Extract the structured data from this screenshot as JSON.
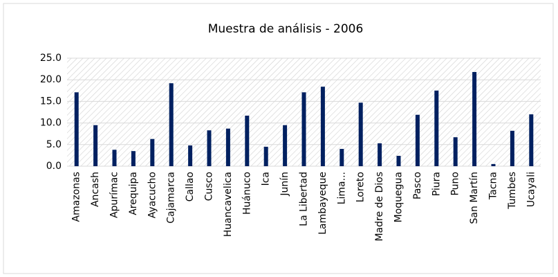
{
  "chart_data": {
    "type": "bar",
    "title": "Muestra de análisis - 2006",
    "categories": [
      "Amazonas",
      "Ancash",
      "Apurímac",
      "Arequipa",
      "Ayacucho",
      "Cajamarca",
      "Callao",
      "Cusco",
      "Huancavelica",
      "Huánuco",
      "Ica",
      "Junín",
      "La Libertad",
      "Lambayeque",
      "Lima...",
      "Loreto",
      "Madre de Dios",
      "Moquegua",
      "Pasco",
      "Piura",
      "Puno",
      "San Martín",
      "Tacna",
      "Tumbes",
      "Ucayali"
    ],
    "values": [
      17.1,
      9.5,
      3.8,
      3.5,
      6.3,
      19.2,
      4.8,
      8.3,
      8.7,
      11.7,
      4.5,
      9.5,
      17.1,
      18.4,
      4.0,
      14.7,
      5.3,
      2.4,
      11.9,
      17.5,
      6.7,
      21.8,
      0.5,
      8.2,
      12.0
    ],
    "color": "#002060",
    "ylim": [
      0,
      25
    ],
    "yticks": [
      {
        "value": 0,
        "label": "0.0"
      },
      {
        "value": 5,
        "label": "5.0"
      },
      {
        "value": 10,
        "label": "10.0"
      },
      {
        "value": 15,
        "label": "15.0"
      },
      {
        "value": 20,
        "label": "20.0"
      },
      {
        "value": 25,
        "label": "25.0"
      }
    ],
    "grid": true
  }
}
